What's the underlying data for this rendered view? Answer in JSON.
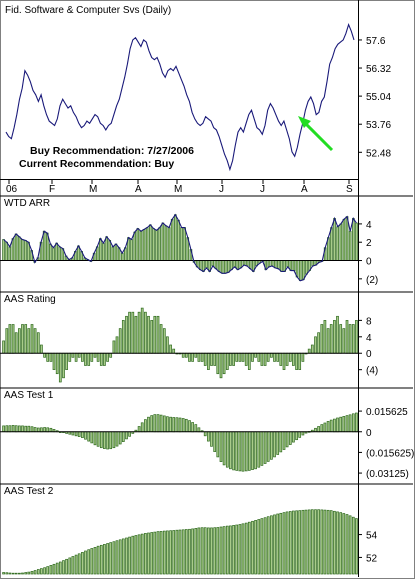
{
  "colors": {
    "line": "#1a1a7a",
    "bar_stroke": "#2f6a1e",
    "bar_fill": "#a9cc8a",
    "axis": "#000000",
    "panel_bg": "#ffffff",
    "frame_bg": "#c0c0c0",
    "arrow": "#22dd22"
  },
  "chart_data": [
    {
      "type": "line",
      "title": "Fid. Software & Computer Svs (Daily)",
      "annotations": [
        "Buy Recommendation: 7/27/2006",
        "Current Recommendation: Buy"
      ],
      "x_ticks": [
        "06",
        "F",
        "M",
        "A",
        "M",
        "J",
        "J",
        "A",
        "S"
      ],
      "y_ticks": [
        "57.6",
        "56.32",
        "55.04",
        "53.76",
        "52.48"
      ],
      "ylim": [
        51.4,
        58.6
      ],
      "values": [
        53.4,
        53.2,
        53.1,
        53.6,
        54.2,
        54.9,
        55.4,
        56.2,
        56.0,
        55.7,
        55.3,
        55.1,
        54.8,
        55.1,
        54.6,
        54.2,
        53.9,
        53.8,
        53.7,
        54.0,
        54.6,
        54.9,
        54.7,
        54.5,
        54.6,
        54.3,
        54.1,
        53.8,
        53.6,
        53.7,
        53.9,
        53.8,
        54.0,
        54.2,
        54.1,
        53.8,
        53.7,
        53.5,
        53.7,
        53.8,
        54.2,
        54.6,
        54.9,
        55.4,
        55.9,
        56.5,
        57.2,
        57.6,
        57.7,
        57.5,
        57.3,
        57.6,
        57.5,
        57.1,
        56.8,
        56.7,
        56.8,
        56.5,
        56.1,
        55.9,
        56.2,
        56.3,
        56.2,
        56.4,
        56.1,
        55.8,
        55.5,
        55.1,
        54.8,
        54.3,
        54.0,
        53.8,
        53.7,
        53.8,
        54.1,
        54.0,
        53.9,
        53.6,
        53.5,
        53.2,
        52.8,
        52.4,
        52.1,
        51.7,
        52.1,
        52.8,
        53.4,
        53.6,
        53.4,
        53.8,
        54.2,
        54.4,
        54.0,
        53.6,
        53.5,
        53.3,
        53.7,
        54.4,
        54.7,
        54.5,
        54.2,
        53.9,
        53.7,
        53.9,
        53.5,
        53.1,
        52.5,
        52.3,
        52.7,
        53.3,
        53.8,
        54.4,
        54.8,
        55.0,
        54.7,
        54.2,
        54.3,
        54.8,
        55.0,
        55.7,
        56.5,
        56.8,
        57.2,
        57.4,
        57.5,
        57.6,
        57.9,
        58.3,
        58.0,
        57.6
      ]
    },
    {
      "type": "bar",
      "title": "WTD ARR",
      "y_ticks": [
        "4",
        "2",
        "0",
        "(2)"
      ],
      "ylim": [
        -3.0,
        5.3
      ],
      "values": [
        2.3,
        2.0,
        1.5,
        2.4,
        2.9,
        2.6,
        2.3,
        2.2,
        2.0,
        1.1,
        -0.2,
        0.3,
        2.0,
        3.2,
        3.0,
        1.8,
        1.4,
        1.9,
        1.5,
        1.3,
        0.5,
        0.1,
        0.3,
        1.0,
        1.6,
        1.0,
        0.3,
        0.1,
        -0.1,
        0.8,
        1.5,
        2.4,
        1.9,
        2.6,
        2.2,
        1.5,
        1.8,
        1.4,
        0.8,
        1.4,
        2.5,
        2.3,
        3.1,
        3.5,
        3.2,
        3.4,
        3.6,
        3.9,
        3.5,
        3.3,
        3.6,
        4.1,
        3.8,
        3.6,
        4.5,
        5.0,
        4.4,
        3.6,
        3.6,
        2.5,
        1.2,
        -0.2,
        -0.7,
        -1.0,
        -1.2,
        -0.8,
        -1.2,
        -0.6,
        -0.9,
        -1.2,
        -1.4,
        -1.4,
        -1.3,
        -1.0,
        -0.7,
        -1.0,
        -0.8,
        -0.5,
        -0.6,
        -0.9,
        -1.2,
        -0.6,
        -0.3,
        -0.1,
        -1.0,
        -0.7,
        -0.6,
        -0.8,
        -0.9,
        -1.2,
        -1.2,
        -0.7,
        -1.1,
        -1.1,
        -1.8,
        -2.2,
        -2.1,
        -1.5,
        -1.1,
        -0.6,
        -0.5,
        -0.2,
        -0.1,
        1.4,
        2.5,
        3.6,
        4.6,
        3.7,
        4.0,
        4.5,
        4.8,
        3.2,
        4.6,
        4.1
      ]
    },
    {
      "type": "bar",
      "title": "AAS Rating",
      "y_ticks": [
        "8",
        "4",
        "0",
        "(4)"
      ],
      "ylim": [
        -7.0,
        11.5
      ],
      "values": [
        3.0,
        6.0,
        7.0,
        7.0,
        5.0,
        6.0,
        7.0,
        7.0,
        6.0,
        7.0,
        6.0,
        5.0,
        2.0,
        -1.0,
        -2.0,
        -2.0,
        -4.0,
        -5.0,
        -7.0,
        -6.0,
        -4.0,
        -2.0,
        -1.0,
        -2.0,
        -1.0,
        -2.0,
        -3.0,
        -3.0,
        -2.0,
        -1.0,
        -2.0,
        -3.0,
        -3.0,
        -2.0,
        -1.0,
        3.0,
        4.0,
        6.0,
        8.0,
        9.0,
        10.0,
        10.0,
        9.0,
        10.0,
        11.0,
        10.0,
        9.0,
        8.0,
        9.0,
        9.0,
        7.0,
        6.0,
        4.0,
        2.0,
        1.0,
        0.0,
        0.0,
        -1.0,
        -1.0,
        -2.0,
        -2.0,
        -1.0,
        -2.0,
        -2.0,
        -3.0,
        -4.0,
        -3.0,
        -3.0,
        -5.0,
        -6.0,
        -5.0,
        -4.0,
        -3.0,
        -3.0,
        -2.0,
        -2.0,
        -2.0,
        -3.0,
        -4.0,
        -2.0,
        -1.0,
        -2.0,
        -3.0,
        -3.0,
        -2.0,
        -1.0,
        -2.0,
        -2.0,
        -3.0,
        -4.0,
        -3.0,
        -2.0,
        -3.0,
        -4.0,
        -4.0,
        -2.0,
        0.0,
        1.0,
        2.0,
        4.0,
        5.0,
        7.0,
        8.0,
        6.0,
        7.0,
        8.0,
        9.0,
        7.0,
        6.0,
        8.0,
        7.0,
        7.0,
        8.0
      ]
    },
    {
      "type": "bar",
      "title": "AAS Test 1",
      "y_ticks": [
        "0.015625",
        "0",
        "(0.015625)",
        "(0.03125)"
      ],
      "ylim": [
        -0.038,
        0.0225
      ],
      "values": [
        0.0044,
        0.0046,
        0.0046,
        0.0048,
        0.0046,
        0.0044,
        0.0044,
        0.0042,
        0.0042,
        0.0038,
        0.0032,
        0.0028,
        0.003,
        0.0032,
        0.003,
        0.0026,
        0.0018,
        0.0008,
        0.0,
        -0.0005,
        -0.0012,
        -0.0018,
        -0.0024,
        -0.003,
        -0.0036,
        -0.0044,
        -0.0056,
        -0.007,
        -0.0084,
        -0.0098,
        -0.011,
        -0.012,
        -0.0127,
        -0.013,
        -0.0128,
        -0.012,
        -0.0108,
        -0.0092,
        -0.0074,
        -0.0054,
        -0.0034,
        -0.0012,
        0.0012,
        0.004,
        0.0068,
        0.0092,
        0.011,
        0.0122,
        0.013,
        0.013,
        0.0126,
        0.012,
        0.0114,
        0.011,
        0.0108,
        0.0106,
        0.0104,
        0.01,
        0.0094,
        0.0084,
        0.007,
        0.0054,
        0.003,
        0.0008,
        -0.003,
        -0.007,
        -0.011,
        -0.015,
        -0.019,
        -0.0225,
        -0.025,
        -0.0268,
        -0.028,
        -0.0288,
        -0.0292,
        -0.0296,
        -0.0298,
        -0.0296,
        -0.0292,
        -0.0286,
        -0.028,
        -0.0268,
        -0.0254,
        -0.024,
        -0.0224,
        -0.0208,
        -0.019,
        -0.0172,
        -0.0152,
        -0.0134,
        -0.0114,
        -0.0096,
        -0.0078,
        -0.006,
        -0.0042,
        -0.0024,
        -0.001,
        0.0002,
        0.0012,
        0.0026,
        0.004,
        0.0054,
        0.0066,
        0.0078,
        0.0088,
        0.0096,
        0.0104,
        0.011,
        0.0116,
        0.0122,
        0.0128,
        0.0136,
        0.0142
      ]
    },
    {
      "type": "bar",
      "title": "AAS Test 2",
      "y_ticks": [
        "54",
        "52"
      ],
      "ylim": [
        50.55,
        57.2
      ],
      "values": [
        50.68,
        50.66,
        50.64,
        50.62,
        50.62,
        50.62,
        50.64,
        50.68,
        50.72,
        50.78,
        50.86,
        50.94,
        51.02,
        51.1,
        51.2,
        51.3,
        51.4,
        51.5,
        51.6,
        51.72,
        51.84,
        51.96,
        52.08,
        52.2,
        52.32,
        52.44,
        52.56,
        52.68,
        52.78,
        52.88,
        52.98,
        53.06,
        53.14,
        53.22,
        53.3,
        53.38,
        53.46,
        53.54,
        53.62,
        53.7,
        53.78,
        53.86,
        53.92,
        53.98,
        54.04,
        54.1,
        54.14,
        54.18,
        54.22,
        54.26,
        54.28,
        54.3,
        54.32,
        54.34,
        54.36,
        54.38,
        54.4,
        54.42,
        54.44,
        54.46,
        54.5,
        54.54,
        54.58,
        54.6,
        54.6,
        54.58,
        54.58,
        54.6,
        54.62,
        54.66,
        54.7,
        54.74,
        54.76,
        54.8,
        54.84,
        54.88,
        54.94,
        55.0,
        55.08,
        55.16,
        55.24,
        55.32,
        55.4,
        55.48,
        55.56,
        55.64,
        55.72,
        55.8,
        55.86,
        55.92,
        55.98,
        56.02,
        56.06,
        56.08,
        56.1,
        56.12,
        56.14,
        56.16,
        56.18,
        56.18,
        56.18,
        56.16,
        56.14,
        56.12,
        56.1,
        56.04,
        55.98,
        55.92,
        55.84,
        55.76,
        55.64,
        55.52,
        55.4
      ]
    }
  ]
}
